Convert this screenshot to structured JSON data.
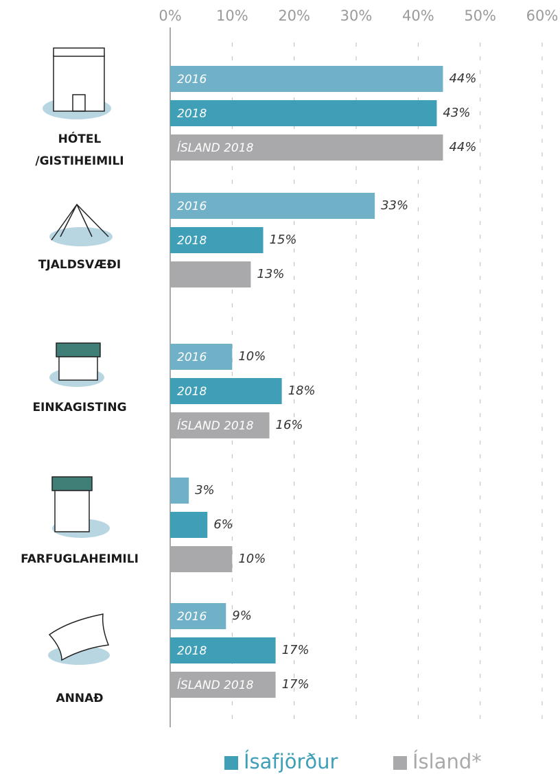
{
  "chart_data": {
    "type": "bar",
    "orientation": "horizontal",
    "categories": [
      "HÓTEL\n/GISTIHEIMILI",
      "TJALDSVÆÐI",
      "EINKAGISTING",
      "FARFUGLAHEIMILI",
      "ANNAÐ"
    ],
    "series": [
      {
        "name": "2016",
        "color": "#71b1c7",
        "values": [
          44,
          33,
          10,
          3,
          9
        ],
        "value_labels": [
          "44%",
          "33%",
          "10%",
          "3%",
          "9%"
        ],
        "bar_labels": [
          "2016",
          "2016",
          "2016",
          null,
          "2016"
        ]
      },
      {
        "name": "2018",
        "color": "#3f9fb7",
        "values": [
          43,
          15,
          18,
          6,
          17
        ],
        "value_labels": [
          "43%",
          "15%",
          "18%",
          "6%",
          "17%"
        ],
        "bar_labels": [
          "2018",
          "2018",
          "2018",
          null,
          "2018"
        ]
      },
      {
        "name": "ÍSLAND 2018",
        "color": "#a9a9ab",
        "values": [
          44,
          13,
          16,
          10,
          17
        ],
        "value_labels": [
          "44%",
          "13%",
          "16%",
          "10%",
          "17%"
        ],
        "bar_labels": [
          "ÍSLAND 2018",
          null,
          "ÍSLAND 2018",
          null,
          "ÍSLAND 2018"
        ]
      }
    ],
    "xlim": [
      0,
      60
    ],
    "xticks": [
      {
        "value": 0,
        "label": "0%"
      },
      {
        "value": 10,
        "label": "10%"
      },
      {
        "value": 20,
        "label": "20%"
      },
      {
        "value": 30,
        "label": "30%"
      },
      {
        "value": 40,
        "label": "40%"
      },
      {
        "value": 50,
        "label": "50%"
      },
      {
        "value": 60,
        "label": "60%"
      }
    ],
    "grid": true,
    "legend": [
      {
        "label": "Ísafjörður",
        "color": "#3f9fb7"
      },
      {
        "label": "Ísland*",
        "color": "#a9a9ab"
      }
    ]
  }
}
